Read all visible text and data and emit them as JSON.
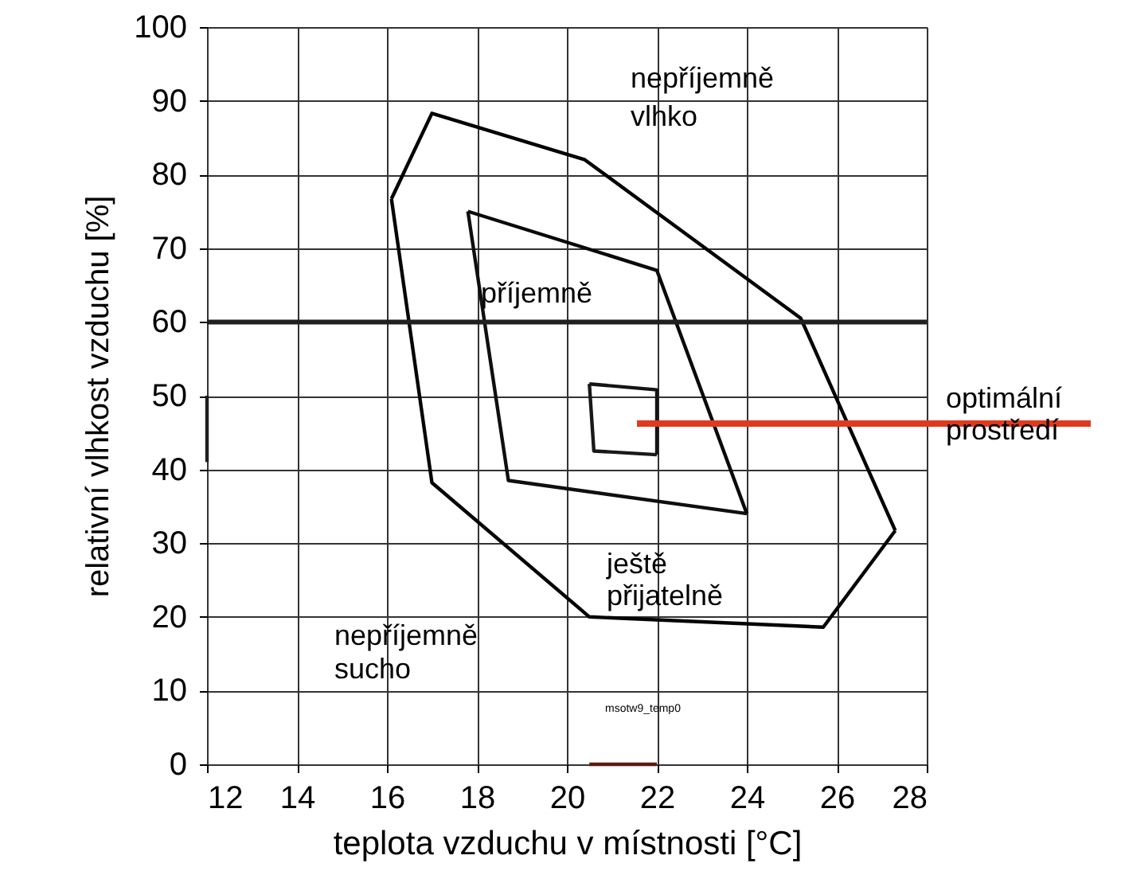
{
  "chart_data": {
    "type": "line",
    "xlabel": "teplota vzduchu v místnosti [°C]",
    "ylabel": "relativní vlhkost vzduchu [%]",
    "xlim": [
      12,
      28
    ],
    "xticks": [
      12,
      14,
      16,
      18,
      20,
      22,
      24,
      26,
      28
    ],
    "ylim": [
      0,
      100
    ],
    "yticks": [
      0,
      10,
      20,
      30,
      40,
      50,
      60,
      70,
      80,
      90,
      100
    ],
    "grid": true,
    "marker": "none",
    "line_style": "solid",
    "series": [
      {
        "color": "#000000",
        "x": [
          16.1,
          17.0,
          20.4,
          25.2,
          27.3
        ],
        "values": [
          76.7,
          88.3,
          82,
          60.5,
          31.7
        ]
      },
      {
        "color": "#050505",
        "x": [
          16.1,
          17.0,
          20.5,
          25.7,
          27.3
        ],
        "values": [
          76.7,
          38.2,
          20,
          18.6,
          31.7
        ]
      },
      {
        "color": "#0a0a0a",
        "x": [
          17.8,
          22.0,
          24.0
        ],
        "values": [
          75,
          67,
          34
        ]
      },
      {
        "color": "#0f0f0f",
        "x": [
          17.8,
          18.7,
          24.0
        ],
        "values": [
          75,
          38.5,
          34
        ]
      },
      {
        "color": "#141414",
        "x": [
          20.5,
          22.0,
          22.0
        ],
        "values": [
          51.6,
          50.8,
          42
        ]
      },
      {
        "color": "#191919",
        "x": [
          20.5,
          20.6,
          22.0
        ],
        "values": [
          51.6,
          42.5,
          42
        ]
      },
      {
        "color": "#1e1e1e",
        "x": [
          12,
          12
        ],
        "values": [
          41,
          50
        ]
      },
      {
        "color": "#5a1a10",
        "x": [
          20.5,
          22
        ],
        "values": [
          0,
          0
        ]
      }
    ],
    "ref_lines": [
      {
        "axis": "y",
        "value": 60,
        "color": "#202020"
      }
    ],
    "annotations": [
      "nepříjemně\nvlhko",
      "příjemně",
      "ještě\npřijatelně",
      "nepříjemně\nsucho",
      "msotw9_temp0",
      "optimální\nprostředí"
    ]
  }
}
